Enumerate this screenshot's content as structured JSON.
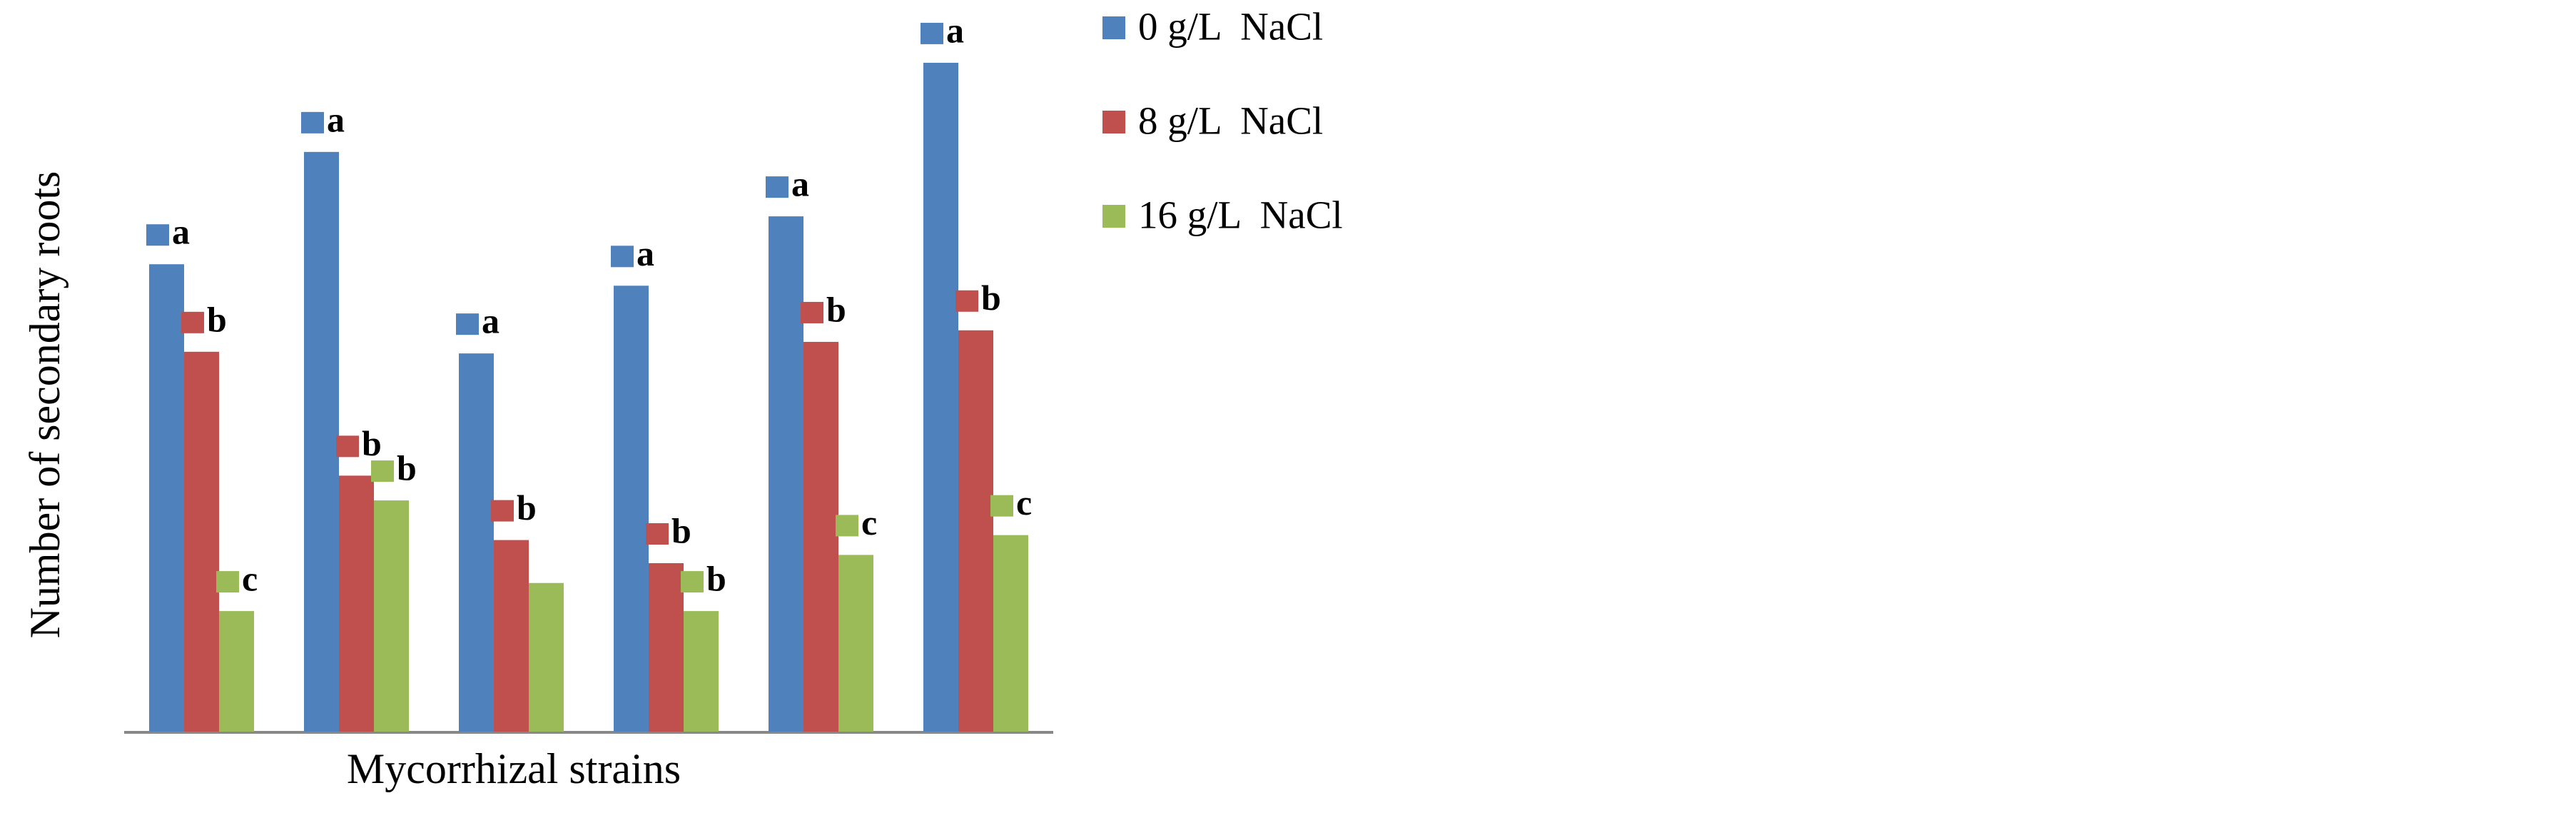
{
  "chart_data": {
    "type": "bar",
    "x_label": "Mycorrhizal strains",
    "y_label": "Number of secondary roots",
    "categories": [
      null,
      null,
      null,
      null,
      null,
      null
    ],
    "ylim": [
      0,
      443
    ],
    "legend": "right",
    "series": [
      {
        "name": "0 g/L  NaCl",
        "color": "#4f81bd",
        "values": [
          283,
          351,
          229,
          270,
          312,
          405
        ],
        "letters": [
          "a",
          "a",
          "a",
          "a",
          "a",
          "a"
        ]
      },
      {
        "name": "8 g/L  NaCl",
        "color": "#c0504d",
        "values": [
          230,
          155,
          116,
          102,
          236,
          243
        ],
        "letters": [
          "b",
          "b",
          "b",
          "b",
          "b",
          "b"
        ]
      },
      {
        "name": "16 g/L  NaCl",
        "color": "#9bbb59",
        "values": [
          73,
          140,
          90,
          73,
          107,
          119
        ],
        "letters": [
          "c",
          "b",
          null,
          "b",
          "c",
          "c"
        ]
      }
    ]
  }
}
